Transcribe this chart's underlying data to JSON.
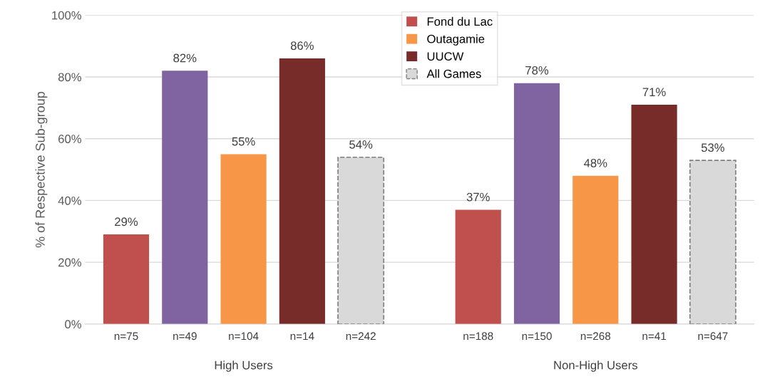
{
  "chart_data": {
    "type": "bar",
    "ylabel": "% of Respective Sub-group",
    "categories": [
      "n=75",
      "n=49",
      "n=104",
      "n=14",
      "n=242",
      null,
      "n=188",
      "n=150",
      "n=268",
      "n=41",
      "n=647"
    ],
    "series": [
      {
        "name": "Fond du Lac",
        "color": "#c0504d",
        "values": [
          29,
          null,
          null,
          null,
          null,
          null,
          37,
          null,
          null,
          null,
          null
        ],
        "value_labels": [
          "29%",
          null,
          null,
          null,
          null,
          null,
          "37%",
          null,
          null,
          null,
          null
        ]
      },
      {
        "color": "#8064a2",
        "values": [
          null,
          82,
          null,
          null,
          null,
          null,
          null,
          78,
          null,
          null,
          null
        ],
        "value_labels": [
          null,
          "82%",
          null,
          null,
          null,
          null,
          null,
          "78%",
          null,
          null,
          null
        ]
      },
      {
        "name": "Outagamie",
        "color": "#f79646",
        "values": [
          null,
          null,
          55,
          null,
          null,
          null,
          null,
          null,
          48,
          null,
          null
        ],
        "value_labels": [
          null,
          null,
          "55%",
          null,
          null,
          null,
          null,
          null,
          "48%",
          null,
          null
        ]
      },
      {
        "name": "UUCW",
        "color": "#772c2a",
        "values": [
          null,
          null,
          null,
          86,
          null,
          null,
          null,
          null,
          null,
          71,
          null
        ],
        "value_labels": [
          null,
          null,
          null,
          "86%",
          null,
          null,
          null,
          null,
          null,
          "71%",
          null
        ]
      },
      {
        "name": "All Games",
        "color": "#d9d9d9",
        "line_style": "dashed",
        "values": [
          null,
          null,
          null,
          null,
          54,
          null,
          null,
          null,
          null,
          null,
          53
        ],
        "value_labels": [
          null,
          null,
          null,
          null,
          "54%",
          null,
          null,
          null,
          null,
          null,
          "53%"
        ]
      }
    ],
    "annotations": [
      "High Users",
      "Non-High Users"
    ],
    "ylim": [
      0,
      100
    ],
    "yticks": [
      {
        "value": 0,
        "label": "0%"
      },
      {
        "value": 20,
        "label": "20%"
      },
      {
        "value": 40,
        "label": "40%"
      },
      {
        "value": 60,
        "label": "60%"
      },
      {
        "value": 80,
        "label": "80%"
      },
      {
        "value": 100,
        "label": "100%"
      }
    ],
    "grid": "y",
    "legend": "top"
  }
}
